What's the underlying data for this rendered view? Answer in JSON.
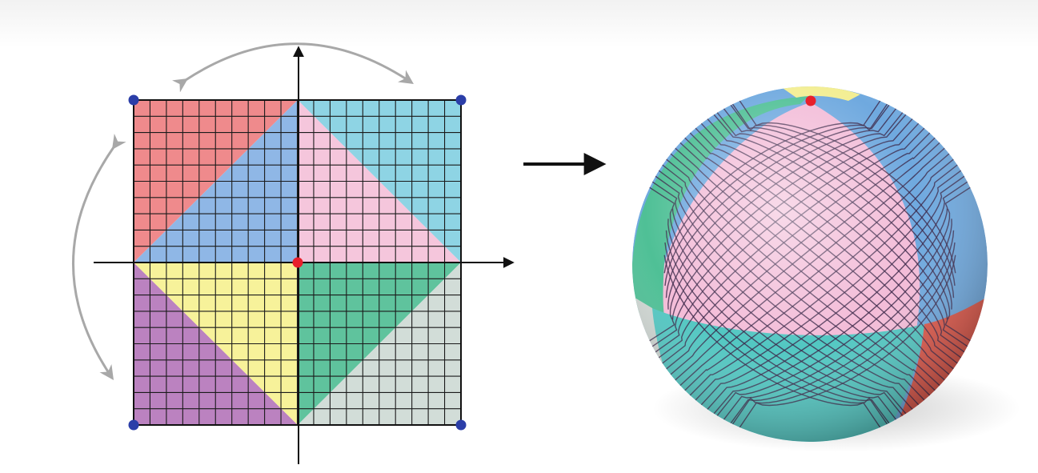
{
  "figure": {
    "grid_divisions": 20,
    "colors": {
      "red": "#ef8a8c",
      "cyan": "#8ed4e4",
      "blue": "#8fb7e6",
      "pink": "#f5c6dc",
      "purple": "#bb82c0",
      "yellow": "#f7f29a",
      "green": "#5fc39d",
      "gray": "#d2ddd8",
      "grid_line": "#1a1a1a",
      "axis": "#111111",
      "rotation_arrow": "#a8a8a8",
      "corner_point": "#2b3ea8",
      "center_point": "#e8202c"
    },
    "square_regions": [
      {
        "name": "red-region",
        "color": "red"
      },
      {
        "name": "cyan-region",
        "color": "cyan"
      },
      {
        "name": "blue-region",
        "color": "blue"
      },
      {
        "name": "pink-region",
        "color": "pink"
      },
      {
        "name": "purple-region",
        "color": "purple"
      },
      {
        "name": "yellow-region",
        "color": "yellow"
      },
      {
        "name": "green-region",
        "color": "green"
      },
      {
        "name": "gray-region",
        "color": "gray"
      }
    ],
    "sphere_panels": [
      {
        "name": "pink-panel",
        "color": "#f3bcd8"
      },
      {
        "name": "teal-panel",
        "color": "#52c7c2"
      },
      {
        "name": "blue-panel",
        "color": "#6fa9df"
      },
      {
        "name": "green-panel",
        "color": "#4fc096"
      },
      {
        "name": "red-panel",
        "color": "#e0584a"
      },
      {
        "name": "yellow-panel",
        "color": "#f3ee93"
      },
      {
        "name": "gray-panel",
        "color": "#cfd6d2"
      }
    ],
    "mesh_color": "#3a2547"
  }
}
